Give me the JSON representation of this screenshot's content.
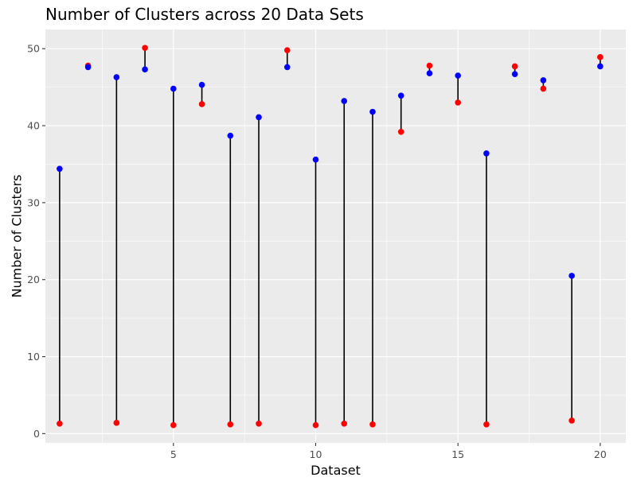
{
  "chart_data": {
    "type": "scatter",
    "title": "Number of Clusters across 20 Data Sets",
    "xlabel": "Dataset",
    "ylabel": "Number of Clusters",
    "xlim": [
      0.5,
      20.9
    ],
    "ylim": [
      -1.2,
      52.5
    ],
    "x_ticks": [
      5,
      10,
      15,
      20
    ],
    "x_tick_labels": [
      "5",
      "10",
      "15",
      "20"
    ],
    "y_ticks": [
      0,
      10,
      20,
      30,
      40,
      50
    ],
    "y_tick_labels": [
      "0",
      "10",
      "20",
      "30",
      "40",
      "50"
    ],
    "grid": true,
    "legend": "none",
    "colors": {
      "series_a": "#ff0000",
      "series_b": "#0000ff",
      "segment": "#000000",
      "panel": "#ebebeb",
      "grid": "#ffffff"
    },
    "x": [
      1,
      2,
      3,
      4,
      5,
      6,
      7,
      8,
      9,
      10,
      11,
      12,
      13,
      14,
      15,
      16,
      17,
      18,
      19,
      20
    ],
    "series": [
      {
        "color": "#ff0000",
        "values": [
          1.3,
          47.8,
          1.4,
          50.1,
          1.1,
          42.8,
          1.2,
          1.3,
          49.8,
          1.1,
          1.3,
          1.2,
          39.2,
          47.8,
          43.0,
          1.2,
          47.7,
          44.8,
          1.7,
          48.9
        ]
      },
      {
        "color": "#0000ff",
        "values": [
          34.4,
          47.6,
          46.3,
          47.3,
          44.8,
          45.3,
          38.7,
          41.1,
          47.6,
          35.6,
          43.2,
          41.8,
          43.9,
          46.8,
          46.5,
          36.4,
          46.7,
          45.9,
          20.5,
          47.7
        ]
      }
    ]
  }
}
